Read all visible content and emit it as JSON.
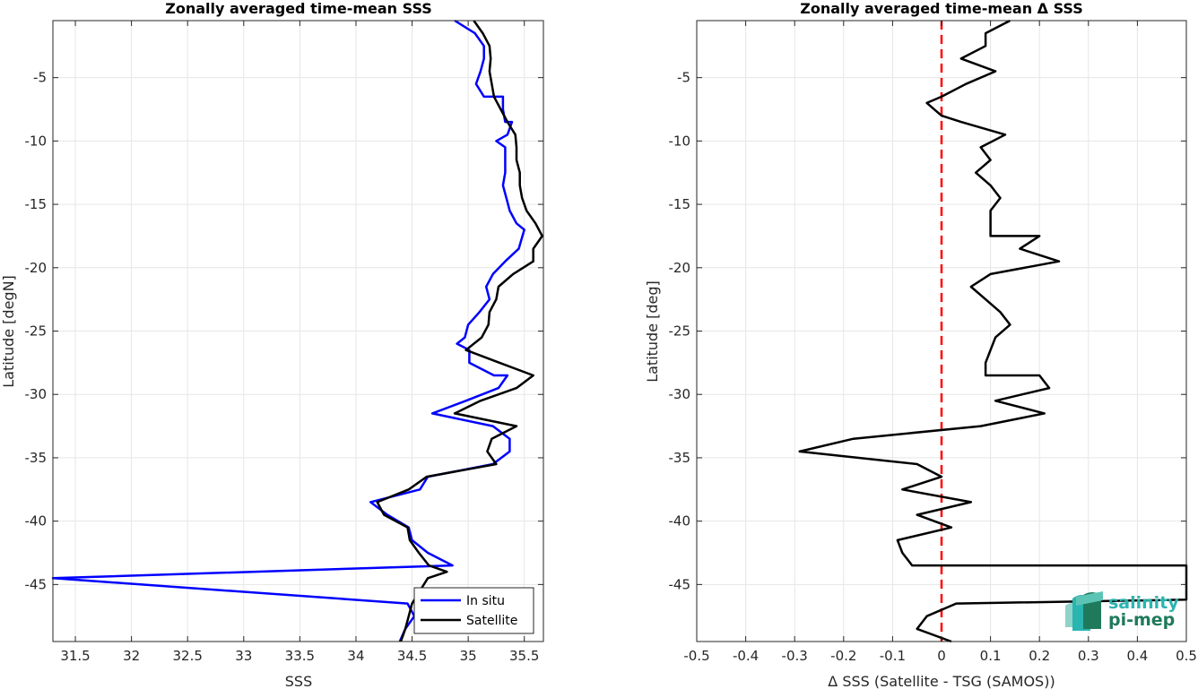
{
  "chart_data": [
    {
      "type": "line",
      "title": "Zonally averaged time-mean SSS",
      "xlabel": "SSS",
      "ylabel": "Latitude [degN]",
      "xlim": [
        31.3,
        35.67
      ],
      "ylim": [
        -49.5,
        -0.5
      ],
      "xticks": [
        31.5,
        32,
        32.5,
        33,
        33.5,
        34,
        34.5,
        35,
        35.5
      ],
      "xtick_labels": [
        "31.5",
        "32",
        "32.5",
        "33",
        "33.5",
        "34",
        "34.5",
        "35",
        "35.5"
      ],
      "yticks": [
        -45,
        -40,
        -35,
        -30,
        -25,
        -20,
        -15,
        -10,
        -5
      ],
      "ytick_labels": [
        "-45",
        "-40",
        "-35",
        "-30",
        "-25",
        "-20",
        "-15",
        "-10",
        "-5"
      ],
      "grid": true,
      "legend_position": "bottom-right",
      "series": [
        {
          "name": "In situ",
          "color": "#0000ff",
          "points": [
            [
              34.88,
              -0.5
            ],
            [
              35.06,
              -1.5
            ],
            [
              35.14,
              -2.5
            ],
            [
              35.14,
              -3.5
            ],
            [
              35.11,
              -4.5
            ],
            [
              35.07,
              -5.5
            ],
            [
              35.14,
              -6.5
            ],
            [
              35.31,
              -6.5
            ],
            [
              35.31,
              -7.5
            ],
            [
              35.33,
              -8.5
            ],
            [
              35.39,
              -8.5
            ],
            [
              35.35,
              -9.5
            ],
            [
              35.25,
              -10.0
            ],
            [
              35.33,
              -10.5
            ],
            [
              35.33,
              -11.5
            ],
            [
              35.33,
              -12.5
            ],
            [
              35.31,
              -13.5
            ],
            [
              35.34,
              -14.5
            ],
            [
              35.37,
              -15.5
            ],
            [
              35.43,
              -16.5
            ],
            [
              35.5,
              -17.0
            ],
            [
              35.45,
              -18.5
            ],
            [
              35.33,
              -19.5
            ],
            [
              35.22,
              -20.5
            ],
            [
              35.16,
              -21.5
            ],
            [
              35.19,
              -22.5
            ],
            [
              35.1,
              -23.5
            ],
            [
              35.0,
              -24.5
            ],
            [
              34.97,
              -25.5
            ],
            [
              34.9,
              -26.0
            ],
            [
              35.01,
              -26.5
            ],
            [
              35.01,
              -27.5
            ],
            [
              35.23,
              -28.5
            ],
            [
              35.35,
              -28.5
            ],
            [
              35.27,
              -29.5
            ],
            [
              34.98,
              -30.5
            ],
            [
              34.68,
              -31.5
            ],
            [
              35.22,
              -32.5
            ],
            [
              35.37,
              -33.5
            ],
            [
              35.37,
              -34.5
            ],
            [
              35.22,
              -35.5
            ],
            [
              34.64,
              -36.5
            ],
            [
              34.57,
              -37.5
            ],
            [
              34.13,
              -38.5
            ],
            [
              34.28,
              -39.5
            ],
            [
              34.47,
              -40.5
            ],
            [
              34.5,
              -41.5
            ],
            [
              34.64,
              -42.5
            ],
            [
              34.86,
              -43.5
            ],
            [
              31.3,
              -44.5
            ],
            [
              34.46,
              -46.5
            ],
            [
              34.52,
              -47.5
            ],
            [
              34.44,
              -48.5
            ],
            [
              34.39,
              -49.5
            ]
          ]
        },
        {
          "name": "Satellite",
          "color": "#000000",
          "points": [
            [
              35.05,
              -0.5
            ],
            [
              35.13,
              -1.5
            ],
            [
              35.19,
              -2.5
            ],
            [
              35.2,
              -3.5
            ],
            [
              35.19,
              -4.5
            ],
            [
              35.21,
              -5.5
            ],
            [
              35.23,
              -6.5
            ],
            [
              35.29,
              -7.5
            ],
            [
              35.35,
              -8.5
            ],
            [
              35.42,
              -9.5
            ],
            [
              35.43,
              -10.5
            ],
            [
              35.43,
              -11.5
            ],
            [
              35.46,
              -12.5
            ],
            [
              35.46,
              -13.5
            ],
            [
              35.48,
              -14.5
            ],
            [
              35.52,
              -15.5
            ],
            [
              35.6,
              -16.5
            ],
            [
              35.66,
              -17.5
            ],
            [
              35.58,
              -18.5
            ],
            [
              35.58,
              -19.5
            ],
            [
              35.4,
              -20.5
            ],
            [
              35.27,
              -21.5
            ],
            [
              35.25,
              -22.5
            ],
            [
              35.19,
              -23.5
            ],
            [
              35.18,
              -24.5
            ],
            [
              35.12,
              -25.5
            ],
            [
              34.98,
              -26.5
            ],
            [
              35.28,
              -27.5
            ],
            [
              35.58,
              -28.5
            ],
            [
              35.43,
              -29.5
            ],
            [
              35.11,
              -30.5
            ],
            [
              34.88,
              -31.5
            ],
            [
              35.43,
              -32.5
            ],
            [
              35.21,
              -33.5
            ],
            [
              35.17,
              -34.5
            ],
            [
              35.25,
              -35.5
            ],
            [
              34.63,
              -36.5
            ],
            [
              34.47,
              -37.5
            ],
            [
              34.19,
              -38.5
            ],
            [
              34.25,
              -39.5
            ],
            [
              34.46,
              -40.5
            ],
            [
              34.48,
              -41.5
            ],
            [
              34.56,
              -42.5
            ],
            [
              34.65,
              -43.5
            ],
            [
              34.81,
              -44.0
            ],
            [
              34.64,
              -44.5
            ],
            [
              34.57,
              -45.5
            ],
            [
              34.5,
              -46.5
            ],
            [
              34.47,
              -47.5
            ],
            [
              34.44,
              -48.5
            ],
            [
              34.4,
              -49.5
            ]
          ]
        }
      ]
    },
    {
      "type": "line",
      "title": "Zonally averaged time-mean Δ SSS",
      "xlabel": "Δ SSS (Satellite - TSG (SAMOS))",
      "ylabel": "Latitude [deg]",
      "xlim": [
        -0.5,
        0.5
      ],
      "ylim": [
        -49.5,
        -0.5
      ],
      "xticks": [
        -0.5,
        -0.4,
        -0.3,
        -0.2,
        -0.1,
        0,
        0.1,
        0.2,
        0.3,
        0.4,
        0.5
      ],
      "xtick_labels": [
        "-0.5",
        "-0.4",
        "-0.3",
        "-0.2",
        "-0.1",
        "0",
        "0.1",
        "0.2",
        "0.3",
        "0.4",
        "0.5"
      ],
      "yticks": [
        -45,
        -40,
        -35,
        -30,
        -25,
        -20,
        -15,
        -10,
        -5
      ],
      "ytick_labels": [
        "-45",
        "-40",
        "-35",
        "-30",
        "-25",
        "-20",
        "-15",
        "-10",
        "-5"
      ],
      "grid": true,
      "reference_line": {
        "x": 0,
        "color": "#ff0000",
        "style": "dashed"
      },
      "series": [
        {
          "color": "#000000",
          "points": [
            [
              0.14,
              -0.5
            ],
            [
              0.09,
              -1.5
            ],
            [
              0.09,
              -2.5
            ],
            [
              0.04,
              -3.5
            ],
            [
              0.11,
              -4.5
            ],
            [
              0.05,
              -5.5
            ],
            [
              0.0,
              -6.5
            ],
            [
              -0.03,
              -7.0
            ],
            [
              0.0,
              -8.0
            ],
            [
              0.04,
              -8.5
            ],
            [
              0.13,
              -9.5
            ],
            [
              0.08,
              -10.5
            ],
            [
              0.1,
              -11.5
            ],
            [
              0.07,
              -12.5
            ],
            [
              0.1,
              -13.5
            ],
            [
              0.12,
              -14.5
            ],
            [
              0.1,
              -15.5
            ],
            [
              0.1,
              -16.5
            ],
            [
              0.1,
              -17.5
            ],
            [
              0.2,
              -17.5
            ],
            [
              0.16,
              -18.5
            ],
            [
              0.24,
              -19.5
            ],
            [
              0.1,
              -20.5
            ],
            [
              0.06,
              -21.5
            ],
            [
              0.09,
              -22.5
            ],
            [
              0.12,
              -23.5
            ],
            [
              0.14,
              -24.5
            ],
            [
              0.11,
              -25.5
            ],
            [
              0.1,
              -26.5
            ],
            [
              0.09,
              -27.5
            ],
            [
              0.09,
              -28.5
            ],
            [
              0.2,
              -28.5
            ],
            [
              0.22,
              -29.5
            ],
            [
              0.11,
              -30.5
            ],
            [
              0.21,
              -31.5
            ],
            [
              0.08,
              -32.5
            ],
            [
              -0.18,
              -33.5
            ],
            [
              -0.29,
              -34.5
            ],
            [
              -0.05,
              -35.5
            ],
            [
              0.0,
              -36.5
            ],
            [
              -0.08,
              -37.5
            ],
            [
              0.06,
              -38.5
            ],
            [
              -0.05,
              -39.5
            ],
            [
              0.02,
              -40.5
            ],
            [
              -0.09,
              -41.5
            ],
            [
              -0.08,
              -42.5
            ],
            [
              -0.06,
              -43.5
            ],
            [
              0.5,
              -43.5
            ],
            [
              0.5,
              -46.2
            ],
            [
              0.03,
              -46.5
            ],
            [
              -0.03,
              -47.5
            ],
            [
              -0.05,
              -48.5
            ],
            [
              0.02,
              -49.5
            ]
          ]
        }
      ]
    }
  ],
  "legend": {
    "items": [
      {
        "label": "In situ",
        "color": "#0000ff"
      },
      {
        "label": "Satellite",
        "color": "#000000"
      }
    ]
  },
  "logo": {
    "line1": "salinity",
    "line2": "pi-mep",
    "colors": {
      "cyan": "#2ab5b0",
      "green": "#1f7a5c",
      "pale": "#8fd3c9"
    }
  }
}
